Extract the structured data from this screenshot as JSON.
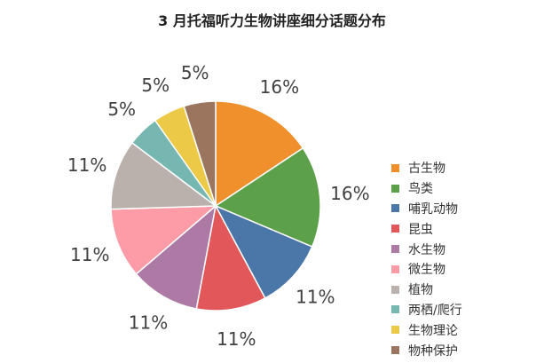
{
  "chart_data": {
    "type": "pie",
    "title": "3 月托福听力生物讲座细分话题分布",
    "start_angle_deg": 0,
    "direction": "clockwise",
    "legend_position": "right",
    "slices": [
      {
        "label": "古生物",
        "value": 16,
        "display": "16%",
        "color": "#F0902C"
      },
      {
        "label": "鸟类",
        "value": 16,
        "display": "16%",
        "color": "#5CA04A"
      },
      {
        "label": "哺乳动物",
        "value": 11,
        "display": "11%",
        "color": "#4A76A8"
      },
      {
        "label": "昆虫",
        "value": 11,
        "display": "11%",
        "color": "#E2575A"
      },
      {
        "label": "水生物",
        "value": 11,
        "display": "11%",
        "color": "#AD7AA6"
      },
      {
        "label": "微生物",
        "value": 11,
        "display": "11%",
        "color": "#FD9CA6"
      },
      {
        "label": "植物",
        "value": 11,
        "display": "11%",
        "color": "#BAB0AC"
      },
      {
        "label": "两栖/爬行",
        "value": 5,
        "display": "5%",
        "color": "#76B7B2"
      },
      {
        "label": "生物理论",
        "value": 5,
        "display": "5%",
        "color": "#EDC948"
      },
      {
        "label": "物种保护",
        "value": 5,
        "display": "5%",
        "color": "#9C755F"
      }
    ]
  }
}
